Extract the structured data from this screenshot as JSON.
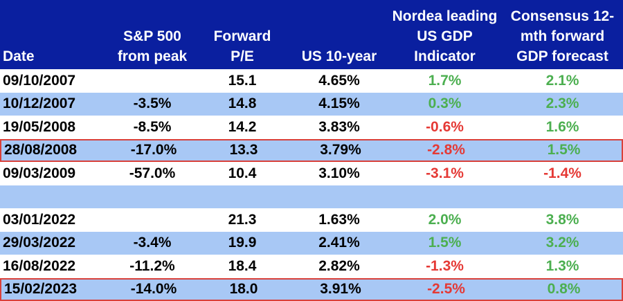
{
  "header": {
    "date": [
      "Date"
    ],
    "sp500": [
      "S&P 500",
      "from peak"
    ],
    "pe": [
      "Forward",
      "P/E"
    ],
    "us10": [
      "US 10-year"
    ],
    "nordea": [
      "Nordea leading",
      "US GDP",
      "Indicator"
    ],
    "consensus": [
      "Consensus 12-",
      "mth forward",
      "GDP forecast"
    ]
  },
  "rows": [
    {
      "date": "09/10/2007",
      "sp500": "",
      "pe": "15.1",
      "us10": "4.65%",
      "nordea": "1.7%",
      "consensus": "2.1%"
    },
    {
      "date": "10/12/2007",
      "sp500": "-3.5%",
      "pe": "14.8",
      "us10": "4.15%",
      "nordea": "0.3%",
      "consensus": "2.3%"
    },
    {
      "date": "19/05/2008",
      "sp500": "-8.5%",
      "pe": "14.2",
      "us10": "3.83%",
      "nordea": "-0.6%",
      "consensus": "1.6%"
    },
    {
      "date": "28/08/2008",
      "sp500": "-17.0%",
      "pe": "13.3",
      "us10": "3.79%",
      "nordea": "-2.8%",
      "consensus": "1.5%"
    },
    {
      "date": "09/03/2009",
      "sp500": "-57.0%",
      "pe": "10.4",
      "us10": "3.10%",
      "nordea": "-3.1%",
      "consensus": "-1.4%"
    },
    {
      "date": "",
      "sp500": "",
      "pe": "",
      "us10": "",
      "nordea": "",
      "consensus": ""
    },
    {
      "date": "03/01/2022",
      "sp500": "",
      "pe": "21.3",
      "us10": "1.63%",
      "nordea": "2.0%",
      "consensus": "3.8%"
    },
    {
      "date": "29/03/2022",
      "sp500": "-3.4%",
      "pe": "19.9",
      "us10": "2.41%",
      "nordea": "1.5%",
      "consensus": "3.2%"
    },
    {
      "date": "16/08/2022",
      "sp500": "-11.2%",
      "pe": "18.4",
      "us10": "2.82%",
      "nordea": "-1.3%",
      "consensus": "1.3%"
    },
    {
      "date": "15/02/2023",
      "sp500": "-14.0%",
      "pe": "18.0",
      "us10": "3.91%",
      "nordea": "-2.5%",
      "consensus": "0.8%"
    }
  ],
  "highlighted_rows": [
    3,
    9
  ],
  "colors": {
    "header_bg": "#0a1f9f",
    "band_bg": "#a8c8f5",
    "positive": "#4caf50",
    "negative": "#e53935",
    "highlight_border": "#d9403a"
  }
}
